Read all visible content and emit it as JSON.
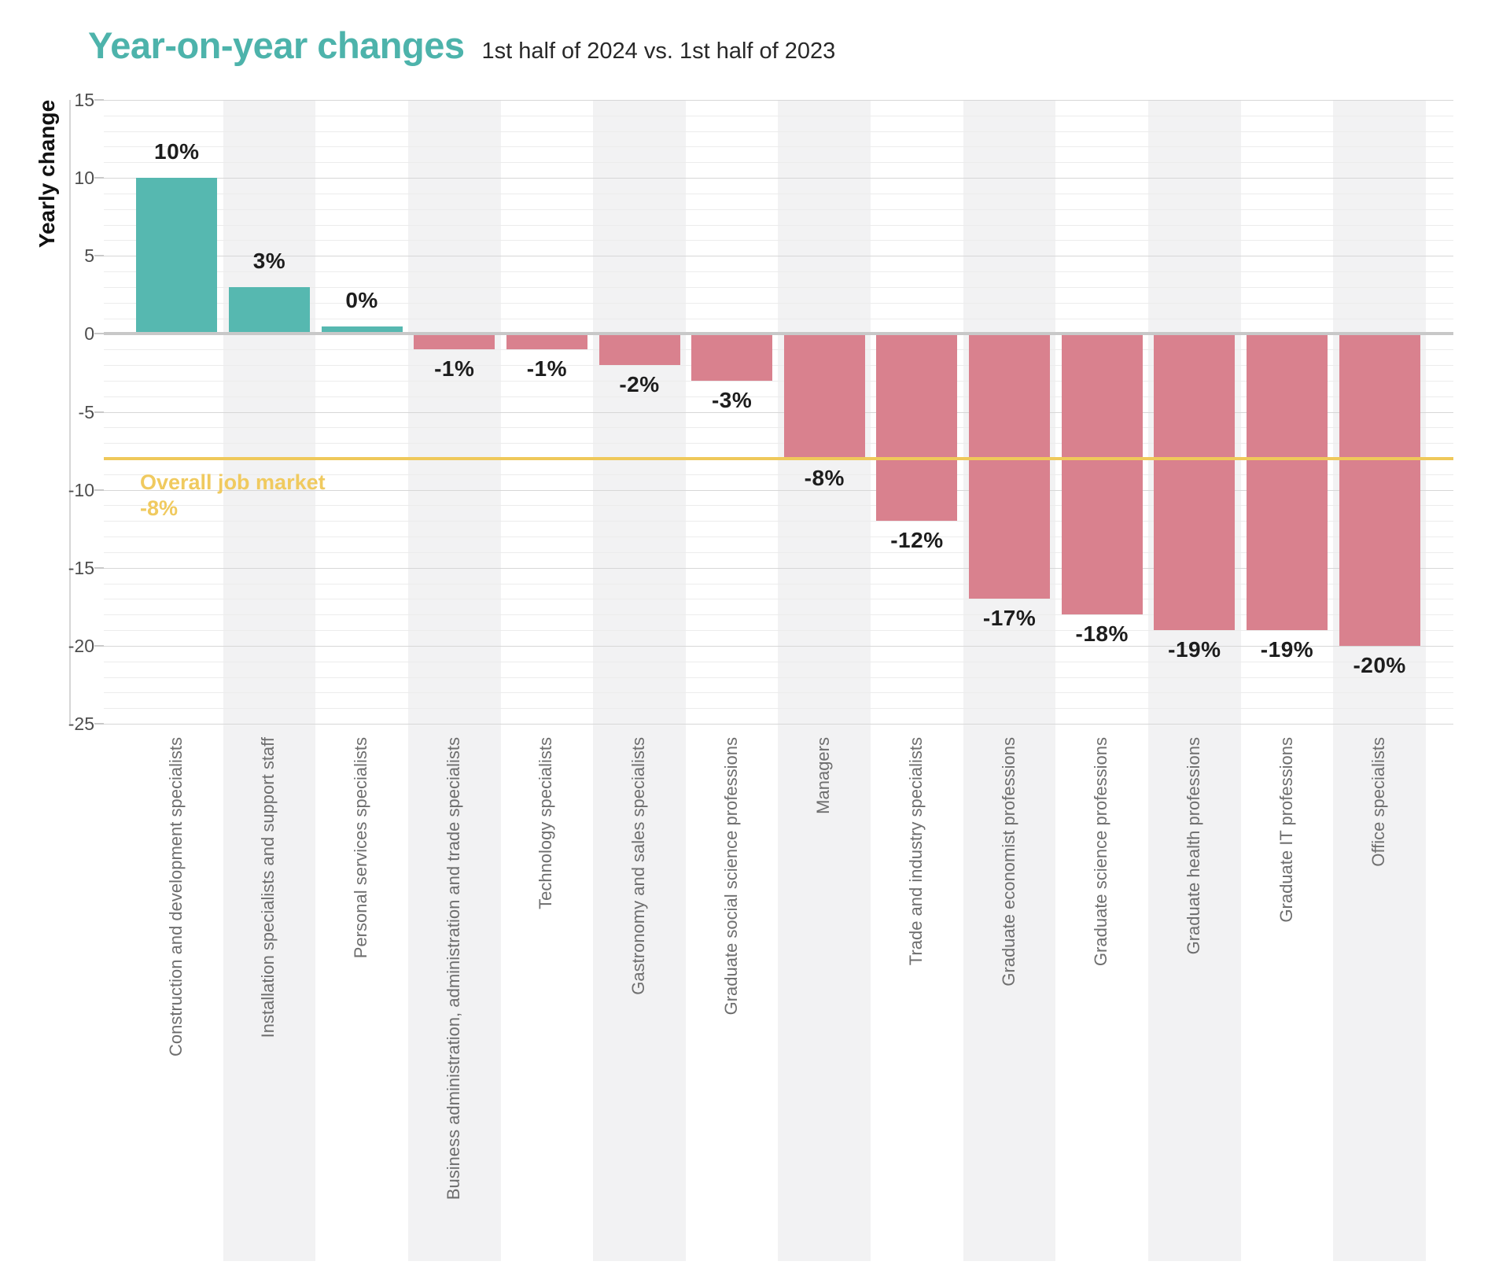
{
  "header": {
    "title": "Year-on-year changes",
    "subtitle": "1st half of 2024 vs. 1st half of 2023"
  },
  "colors": {
    "title": "#4db3ab",
    "positive_bar": "#56b8b0",
    "negative_bar": "#d9818e",
    "reference_line": "#efc85a",
    "reference_label": "#f0ca5f",
    "stripe": "#f2f2f3",
    "value_label": "#1d1d1d"
  },
  "reference": {
    "label": "Overall job market",
    "value_label": "-8%",
    "value": -8
  },
  "chart_data": {
    "type": "bar",
    "title": "Year-on-year changes",
    "subtitle": "1st half of 2024 vs. 1st half of 2023",
    "xlabel": "",
    "ylabel": "Yearly change",
    "ylim": [
      -25,
      15
    ],
    "yticks": [
      15,
      10,
      5,
      0,
      -5,
      -10,
      -15,
      -20,
      -25
    ],
    "grid": {
      "minor_step": 1,
      "major_step": 5,
      "orientation": "horizontal"
    },
    "legend": null,
    "background": "alternating vertical column stripes",
    "reference_line": {
      "value": -8,
      "label": "Overall job market",
      "value_label": "-8%"
    },
    "categories": [
      "Construction and development specialists",
      "Installation specialists and support staff",
      "Personal services specialists",
      "Business administration, administration and trade specialists",
      "Technology specialists",
      "Gastronomy and sales specialists",
      "Graduate social science professions",
      "Managers",
      "Trade and industry specialists",
      "Graduate economist professions",
      "Graduate science professions",
      "Graduate health professions",
      "Graduate IT professions",
      "Office specialists"
    ],
    "values": [
      10,
      3,
      0,
      -1,
      -1,
      -2,
      -3,
      -8,
      -12,
      -17,
      -18,
      -19,
      -19,
      -20
    ],
    "value_labels": [
      "10%",
      "3%",
      "0%",
      "-1%",
      "-1%",
      "-2%",
      "-3%",
      "-8%",
      "-12%",
      "-17%",
      "-18%",
      "-19%",
      "-19%",
      "-20%"
    ]
  }
}
